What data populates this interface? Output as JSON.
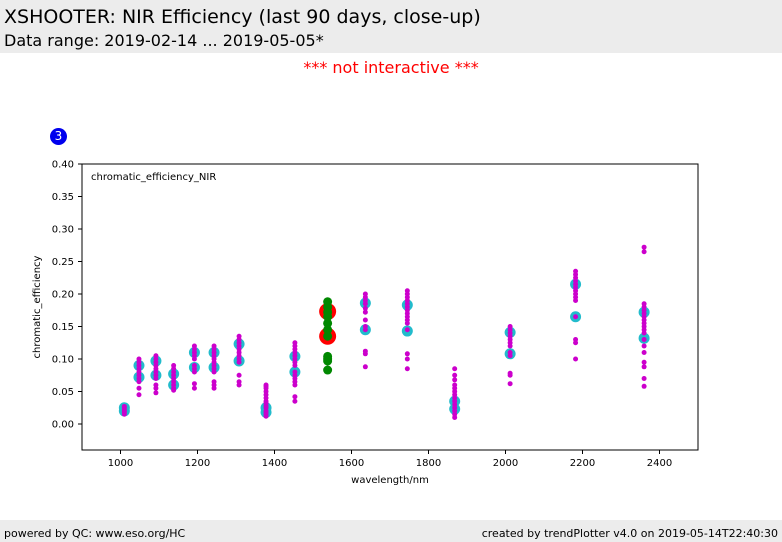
{
  "header": {
    "title": "XSHOOTER: NIR Efficiency (last 90 days, close-up)",
    "subtitle": "Data range: 2019-02-14 ... 2019-05-05*"
  },
  "notice": "*** not interactive ***",
  "badge": "3",
  "footer": {
    "left": "powered by QC: www.eso.org/HC",
    "right": "created by trendPlotter v4.0 on 2019-05-14T22:40:30"
  },
  "colors": {
    "all_points": "#cc00cc",
    "highlight_ring": "#22bbcc",
    "selected_points": "#008800",
    "selected_ring": "#ff0000"
  },
  "chart_data": {
    "type": "scatter",
    "annotation": "chromatic_efficiency_NIR",
    "xlabel": "wavelength/nm",
    "ylabel": "chromatic_efficiency",
    "xlim": [
      900,
      2500
    ],
    "ylim": [
      -0.04,
      0.4
    ],
    "xticks": [
      "1000",
      "1200",
      "1400",
      "1600",
      "1800",
      "2000",
      "2200",
      "2400"
    ],
    "yticks": [
      "0.00",
      "0.05",
      "0.10",
      "0.15",
      "0.20",
      "0.25",
      "0.30",
      "0.35",
      "0.40"
    ],
    "grid": false,
    "series": [
      {
        "role": "all",
        "points": [
          {
            "x": 1010,
            "ys": [
              0.015,
              0.018,
              0.02,
              0.022,
              0.025,
              0.027
            ]
          },
          {
            "x": 1048,
            "ys": [
              0.045,
              0.055,
              0.065,
              0.07,
              0.075,
              0.08,
              0.085,
              0.09,
              0.095,
              0.1
            ]
          },
          {
            "x": 1092,
            "ys": [
              0.048,
              0.055,
              0.06,
              0.07,
              0.075,
              0.08,
              0.085,
              0.09,
              0.095,
              0.1,
              0.105
            ]
          },
          {
            "x": 1138,
            "ys": [
              0.052,
              0.055,
              0.06,
              0.065,
              0.07,
              0.075,
              0.08,
              0.085,
              0.09
            ]
          },
          {
            "x": 1192,
            "ys": [
              0.055,
              0.062,
              0.08,
              0.085,
              0.09,
              0.1,
              0.105,
              0.11,
              0.115,
              0.12
            ]
          },
          {
            "x": 1243,
            "ys": [
              0.055,
              0.06,
              0.065,
              0.08,
              0.085,
              0.09,
              0.095,
              0.1,
              0.105,
              0.11,
              0.115,
              0.12
            ]
          },
          {
            "x": 1308,
            "ys": [
              0.06,
              0.065,
              0.075,
              0.095,
              0.1,
              0.105,
              0.11,
              0.115,
              0.12,
              0.125,
              0.13,
              0.135
            ]
          },
          {
            "x": 1378,
            "ys": [
              0.012,
              0.015,
              0.018,
              0.02,
              0.025,
              0.028,
              0.032,
              0.035,
              0.04,
              0.045,
              0.05,
              0.055,
              0.058,
              0.06
            ]
          },
          {
            "x": 1453,
            "ys": [
              0.035,
              0.042,
              0.06,
              0.065,
              0.07,
              0.075,
              0.08,
              0.09,
              0.095,
              0.1,
              0.105,
              0.11,
              0.115,
              0.12,
              0.125
            ]
          },
          {
            "x": 1636,
            "ys": [
              0.088,
              0.108,
              0.112,
              0.145,
              0.15,
              0.16,
              0.172,
              0.178,
              0.185,
              0.19,
              0.195,
              0.2
            ]
          },
          {
            "x": 1745,
            "ys": [
              0.085,
              0.1,
              0.108,
              0.145,
              0.155,
              0.16,
              0.165,
              0.17,
              0.175,
              0.18,
              0.185,
              0.19,
              0.195,
              0.2,
              0.205
            ]
          },
          {
            "x": 1868,
            "ys": [
              0.01,
              0.015,
              0.02,
              0.025,
              0.03,
              0.035,
              0.04,
              0.045,
              0.05,
              0.055,
              0.06,
              0.068,
              0.075,
              0.085
            ]
          },
          {
            "x": 2012,
            "ys": [
              0.062,
              0.075,
              0.078,
              0.105,
              0.11,
              0.12,
              0.125,
              0.13,
              0.135,
              0.14,
              0.145,
              0.15
            ]
          },
          {
            "x": 2182,
            "ys": [
              0.1,
              0.125,
              0.13,
              0.165,
              0.19,
              0.195,
              0.2,
              0.205,
              0.21,
              0.215,
              0.22,
              0.225,
              0.23,
              0.235
            ]
          },
          {
            "x": 2360,
            "ys": [
              0.058,
              0.07,
              0.088,
              0.095,
              0.11,
              0.12,
              0.13,
              0.14,
              0.145,
              0.15,
              0.155,
              0.16,
              0.165,
              0.17,
              0.175,
              0.18,
              0.185,
              0.265,
              0.272
            ]
          }
        ]
      },
      {
        "role": "highlight",
        "points": [
          {
            "x": 1010,
            "y": 0.02
          },
          {
            "x": 1010,
            "y": 0.025
          },
          {
            "x": 1048,
            "y": 0.072
          },
          {
            "x": 1048,
            "y": 0.09
          },
          {
            "x": 1092,
            "y": 0.075
          },
          {
            "x": 1092,
            "y": 0.097
          },
          {
            "x": 1138,
            "y": 0.06
          },
          {
            "x": 1138,
            "y": 0.077
          },
          {
            "x": 1192,
            "y": 0.087
          },
          {
            "x": 1192,
            "y": 0.11
          },
          {
            "x": 1243,
            "y": 0.087
          },
          {
            "x": 1243,
            "y": 0.11
          },
          {
            "x": 1308,
            "y": 0.097
          },
          {
            "x": 1308,
            "y": 0.123
          },
          {
            "x": 1378,
            "y": 0.018
          },
          {
            "x": 1378,
            "y": 0.025
          },
          {
            "x": 1453,
            "y": 0.08
          },
          {
            "x": 1453,
            "y": 0.104
          },
          {
            "x": 1636,
            "y": 0.145
          },
          {
            "x": 1636,
            "y": 0.186
          },
          {
            "x": 1745,
            "y": 0.143
          },
          {
            "x": 1745,
            "y": 0.183
          },
          {
            "x": 1868,
            "y": 0.023
          },
          {
            "x": 1868,
            "y": 0.035
          },
          {
            "x": 2012,
            "y": 0.108
          },
          {
            "x": 2012,
            "y": 0.141
          },
          {
            "x": 2182,
            "y": 0.165
          },
          {
            "x": 2182,
            "y": 0.215
          },
          {
            "x": 2360,
            "y": 0.132
          },
          {
            "x": 2360,
            "y": 0.172
          }
        ]
      },
      {
        "role": "selected",
        "points": [
          {
            "x": 1538,
            "ys": [
              0.083,
              0.097,
              0.1,
              0.104,
              0.135,
              0.145,
              0.155,
              0.165,
              0.172,
              0.18,
              0.188
            ]
          }
        ]
      },
      {
        "role": "selected-highlight",
        "points": [
          {
            "x": 1538,
            "y": 0.135
          },
          {
            "x": 1538,
            "y": 0.173
          }
        ]
      }
    ]
  }
}
